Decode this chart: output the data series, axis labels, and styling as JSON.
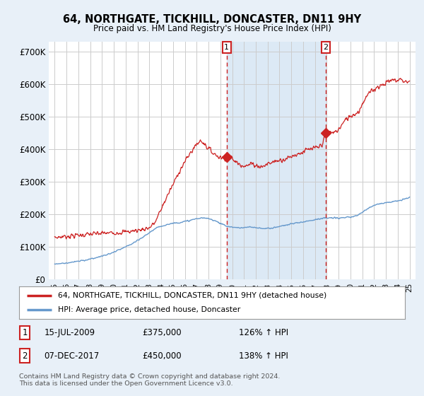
{
  "title": "64, NORTHGATE, TICKHILL, DONCASTER, DN11 9HY",
  "subtitle": "Price paid vs. HM Land Registry's House Price Index (HPI)",
  "background_color": "#e8f0f8",
  "plot_bg_color": "#ffffff",
  "shade_color": "#dce9f5",
  "ylabel_ticks": [
    "£0",
    "£100K",
    "£200K",
    "£300K",
    "£400K",
    "£500K",
    "£600K",
    "£700K"
  ],
  "ytick_values": [
    0,
    100000,
    200000,
    300000,
    400000,
    500000,
    600000,
    700000
  ],
  "ylim": [
    0,
    730000
  ],
  "sale1_x": 2009.54,
  "sale1_price": 375000,
  "sale1_label": "1",
  "sale1_date_str": "15-JUL-2009",
  "sale1_pct": "126%",
  "sale2_x": 2017.92,
  "sale2_price": 450000,
  "sale2_label": "2",
  "sale2_date_str": "07-DEC-2017",
  "sale2_pct": "138%",
  "line_color_red": "#cc2222",
  "line_color_blue": "#6699cc",
  "grid_color": "#cccccc",
  "dashed_color": "#cc2222",
  "legend_label_red": "64, NORTHGATE, TICKHILL, DONCASTER, DN11 9HY (detached house)",
  "legend_label_blue": "HPI: Average price, detached house, Doncaster",
  "footer_text": "Contains HM Land Registry data © Crown copyright and database right 2024.\nThis data is licensed under the Open Government Licence v3.0.",
  "sale1_amount": "£375,000",
  "sale2_amount": "£450,000",
  "sale1_hpi": "126% ↑ HPI",
  "sale2_hpi": "138% ↑ HPI"
}
